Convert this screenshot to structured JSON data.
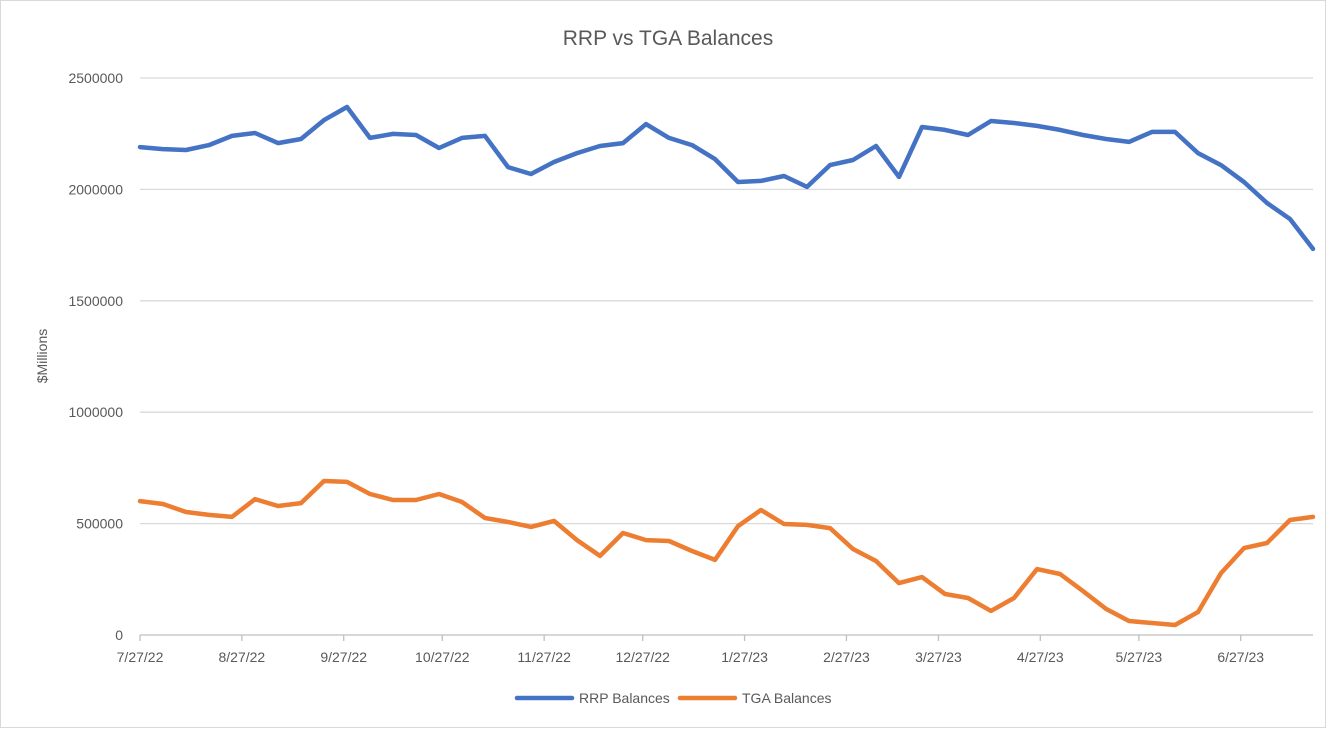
{
  "chart_data": {
    "type": "line",
    "title": "RRP vs TGA Balances",
    "xlabel": "",
    "ylabel": "$Millions",
    "ylim": [
      0,
      2500000
    ],
    "yticks": [
      0,
      500000,
      1000000,
      1500000,
      2000000,
      2500000
    ],
    "ytick_labels": [
      "0",
      "500000",
      "1000000",
      "1500000",
      "2000000",
      "2500000"
    ],
    "x_unit": "days since 7/27/22",
    "xlim": [
      0,
      357
    ],
    "xticks": [
      0,
      31,
      62,
      92,
      123,
      153,
      184,
      215,
      243,
      274,
      304,
      335
    ],
    "xtick_labels": [
      "7/27/22",
      "8/27/22",
      "9/27/22",
      "10/27/22",
      "11/27/22",
      "12/27/22",
      "1/27/23",
      "2/27/23",
      "3/27/23",
      "4/27/23",
      "5/27/23",
      "6/27/23"
    ],
    "grid": "horizontal",
    "legend_position": "bottom",
    "x": [
      0,
      7,
      14,
      21,
      28,
      35,
      42,
      49,
      56,
      63,
      70,
      77,
      84,
      91,
      98,
      105,
      112,
      119,
      126,
      133,
      140,
      147,
      154,
      161,
      168,
      175,
      182,
      189,
      196,
      203,
      210,
      217,
      224,
      231,
      238,
      245,
      252,
      259,
      266,
      273,
      280,
      287,
      294,
      301,
      308,
      315,
      322,
      329,
      336,
      343,
      350,
      357
    ],
    "series": [
      {
        "name": "RRP Balances",
        "color": "#4472c4",
        "values": [
          2190000,
          2181000,
          2177000,
          2199000,
          2240000,
          2253000,
          2208000,
          2226000,
          2311000,
          2370000,
          2231000,
          2249000,
          2244000,
          2186000,
          2231000,
          2240000,
          2100000,
          2069000,
          2123000,
          2163000,
          2195000,
          2208000,
          2293000,
          2231000,
          2199000,
          2136000,
          2033000,
          2038000,
          2060000,
          2011000,
          2109000,
          2132000,
          2195000,
          2056000,
          2280000,
          2267000,
          2244000,
          2307000,
          2298000,
          2285000,
          2267000,
          2244000,
          2226000,
          2213000,
          2258000,
          2258000,
          2163000,
          2109000,
          2033000,
          1939000,
          1867000,
          1733000
        ]
      },
      {
        "name": "TGA Balances",
        "color": "#ed7d31",
        "values": [
          601000,
          588000,
          552000,
          539000,
          530000,
          610000,
          579000,
          592000,
          691000,
          687000,
          633000,
          606000,
          606000,
          633000,
          597000,
          525000,
          507000,
          485000,
          512000,
          426000,
          355000,
          458000,
          426000,
          422000,
          377000,
          337000,
          489000,
          561000,
          498000,
          494000,
          480000,
          386000,
          332000,
          233000,
          260000,
          184000,
          166000,
          108000,
          166000,
          296000,
          274000,
          197000,
          117000,
          63000,
          54000,
          45000,
          103000,
          278000,
          390000,
          413000,
          516000,
          530000
        ]
      }
    ]
  }
}
